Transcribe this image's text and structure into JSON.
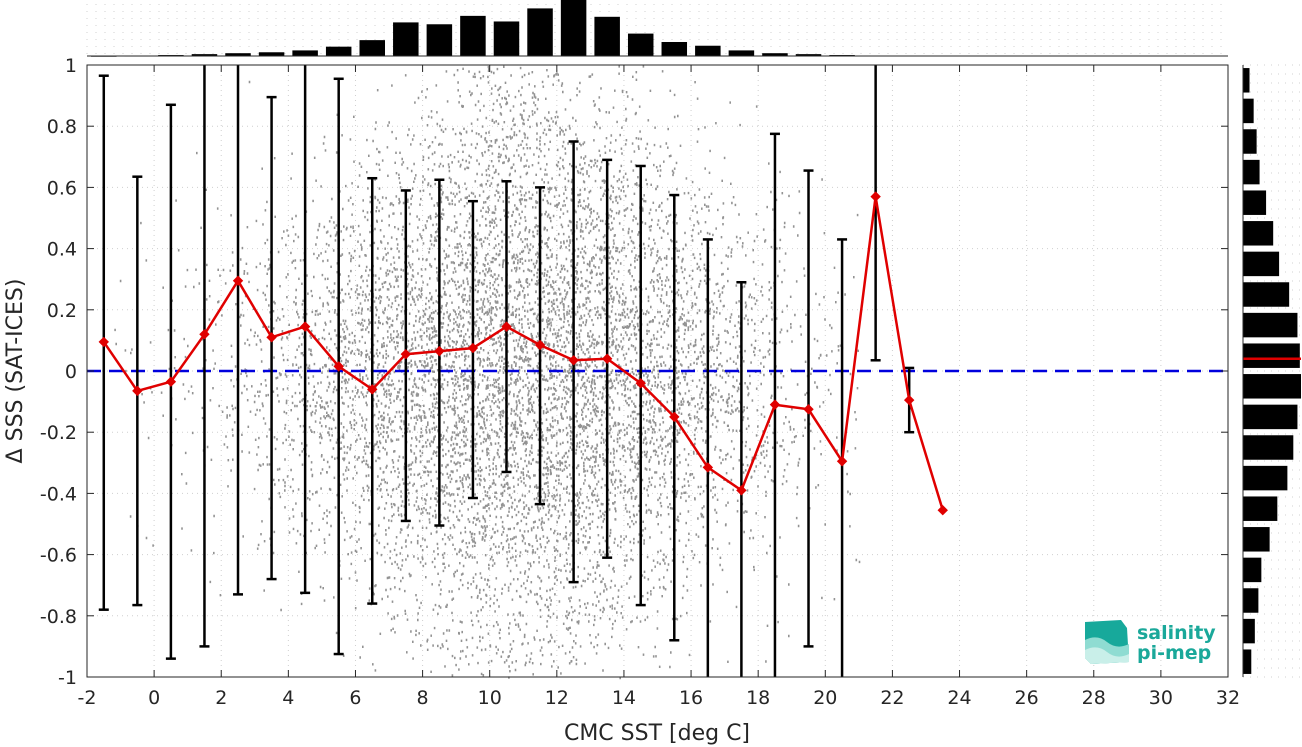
{
  "chart_data": {
    "type": "scatter",
    "title": "",
    "xlabel": "CMC SST [deg C]",
    "ylabel": "Δ SSS (SAT-ICES)",
    "xlim": [
      -2,
      32
    ],
    "ylim": [
      -1,
      1
    ],
    "xticks": [
      "-2",
      "0",
      "2",
      "4",
      "6",
      "8",
      "10",
      "12",
      "14",
      "16",
      "18",
      "20",
      "22",
      "24",
      "26",
      "28",
      "30",
      "32"
    ],
    "yticks": [
      "1",
      "0.8",
      "0.6",
      "0.4",
      "0.2",
      "0",
      "-0.2",
      "-0.4",
      "-0.6",
      "-0.8",
      "-1"
    ],
    "grid": true,
    "reference_line": {
      "y": 0,
      "color": "#0000dd",
      "style": "dashed"
    },
    "scatter": {
      "color": "#808080",
      "x_center": 11,
      "x_spread_sd": 3.8,
      "y_spread_sd": 0.42
    },
    "binned_mean": {
      "color": "#e00000",
      "x": [
        -1.5,
        -0.5,
        0.5,
        1.5,
        2.5,
        3.5,
        4.5,
        5.5,
        6.5,
        7.5,
        8.5,
        9.5,
        10.5,
        11.5,
        12.5,
        13.5,
        14.5,
        15.5,
        16.5,
        17.5,
        18.5,
        19.5,
        20.5,
        21.5,
        22.5,
        23.5
      ],
      "mean": [
        0.095,
        -0.065,
        -0.035,
        0.12,
        0.295,
        0.11,
        0.145,
        0.015,
        -0.06,
        0.055,
        0.065,
        0.075,
        0.145,
        0.085,
        0.035,
        0.04,
        -0.04,
        -0.15,
        -0.315,
        -0.39,
        -0.11,
        -0.125,
        -0.295,
        0.57,
        -0.095,
        -0.455
      ],
      "upper": [
        0.965,
        0.635,
        0.87,
        1.0,
        1.0,
        0.895,
        1.0,
        0.955,
        0.63,
        0.59,
        0.625,
        0.555,
        0.62,
        0.6,
        0.75,
        0.69,
        0.67,
        0.575,
        0.43,
        0.29,
        0.775,
        0.655,
        0.43,
        1.0,
        0.01,
        null
      ],
      "lower": [
        -0.78,
        -0.765,
        -0.94,
        -0.9,
        -0.73,
        -0.68,
        -0.725,
        -0.925,
        -0.76,
        -0.49,
        -0.505,
        -0.415,
        -0.33,
        -0.435,
        -0.69,
        -0.61,
        -0.765,
        -0.88,
        -1.0,
        -1.0,
        -1.0,
        -0.9,
        -1.0,
        0.035,
        -0.2,
        null
      ]
    },
    "top_histogram": {
      "bin_centers": [
        -1.5,
        -0.5,
        0.5,
        1.5,
        2.5,
        3.5,
        4.5,
        5.5,
        6.5,
        7.5,
        8.5,
        9.5,
        10.5,
        11.5,
        12.5,
        13.5,
        14.5,
        15.5,
        16.5,
        17.5,
        18.5,
        19.5,
        20.5
      ],
      "counts": [
        0.1,
        0.3,
        1,
        2,
        3,
        4,
        6,
        10,
        17,
        36,
        34,
        43,
        37,
        51,
        60,
        42,
        24,
        15,
        11,
        6,
        3,
        2,
        1
      ]
    },
    "right_histogram": {
      "bin_centers": [
        0.95,
        0.85,
        0.75,
        0.65,
        0.55,
        0.45,
        0.35,
        0.25,
        0.15,
        0.05,
        -0.05,
        -0.15,
        -0.25,
        -0.35,
        -0.45,
        -0.55,
        -0.65,
        -0.75,
        -0.85,
        -0.95
      ],
      "counts": [
        11,
        18,
        23,
        28,
        39,
        51,
        61,
        78,
        92,
        96,
        98,
        92,
        85,
        75,
        58,
        45,
        31,
        26,
        20,
        14
      ],
      "median_marker_y": 0.04,
      "median_marker_color": "#e00000"
    }
  },
  "logo": {
    "line1": "salinity",
    "line2": "pi-mep"
  }
}
